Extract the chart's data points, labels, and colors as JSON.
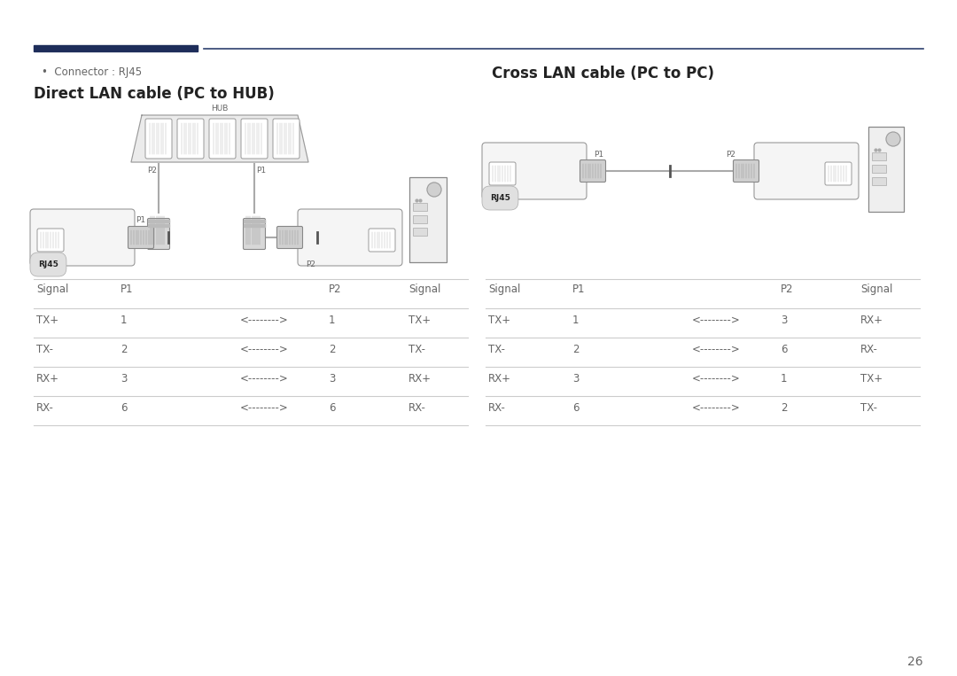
{
  "bg_color": "#ffffff",
  "header_bar_color": "#1e2d5a",
  "header_line_color": "#2d3f6e",
  "page_number": "26",
  "connector_bullet": "Connector : RJ45",
  "left_title": "Direct LAN cable (PC to HUB)",
  "right_title": "Cross LAN cable (PC to PC)",
  "left_table": {
    "headers": [
      "Signal",
      "P1",
      "",
      "P2",
      "Signal"
    ],
    "rows": [
      [
        "TX+",
        "1",
        "<-------->",
        "1",
        "TX+"
      ],
      [
        "TX-",
        "2",
        "<-------->",
        "2",
        "TX-"
      ],
      [
        "RX+",
        "3",
        "<-------->",
        "3",
        "RX+"
      ],
      [
        "RX-",
        "6",
        "<-------->",
        "6",
        "RX-"
      ]
    ]
  },
  "right_table": {
    "headers": [
      "Signal",
      "P1",
      "",
      "P2",
      "Signal"
    ],
    "rows": [
      [
        "TX+",
        "1",
        "<-------->",
        "3",
        "RX+"
      ],
      [
        "TX-",
        "2",
        "<-------->",
        "6",
        "RX-"
      ],
      [
        "RX+",
        "3",
        "<-------->",
        "1",
        "TX+"
      ],
      [
        "RX-",
        "6",
        "<-------->",
        "2",
        "TX-"
      ]
    ]
  },
  "text_color": "#222222",
  "light_text_color": "#666666",
  "table_line_color": "#cccccc",
  "diag_edge_color": "#888888",
  "diag_fill_light": "#f0f0f0",
  "diag_fill_white": "#ffffff",
  "diag_fill_mid": "#cccccc",
  "diag_fill_dark": "#aaaaaa",
  "font_size_title": 12,
  "font_size_body": 8.5,
  "font_size_small": 7,
  "font_size_tiny": 6
}
